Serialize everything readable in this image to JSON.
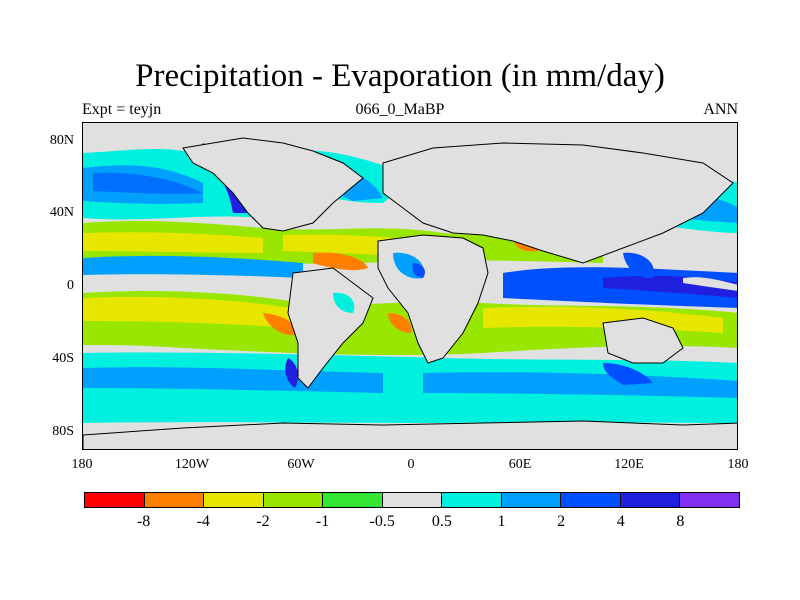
{
  "title": "Precipitation - Evaporation (in mm/day)",
  "subtitle_left": "Expt = teyjn",
  "subtitle_center": "066_0_MaBP",
  "subtitle_right": "ANN",
  "lat_labels": [
    "80N",
    "40N",
    "0",
    "40S",
    "80S"
  ],
  "lon_labels": [
    "180",
    "120W",
    "60W",
    "0",
    "60E",
    "120E",
    "180"
  ],
  "colorbar": {
    "colors": [
      "#ff0000",
      "#ff8000",
      "#e6e600",
      "#99e600",
      "#33e633",
      "#e0e0e0",
      "#00f0e0",
      "#00a0ff",
      "#0050ff",
      "#2020e0",
      "#8030f0"
    ],
    "labels": [
      "-8",
      "-4",
      "-2",
      "-1",
      "-0.5",
      "0.5",
      "1",
      "2",
      "4",
      "8"
    ]
  },
  "colors": {
    "frame": "#000000",
    "neutral": "#e0e0e0"
  }
}
